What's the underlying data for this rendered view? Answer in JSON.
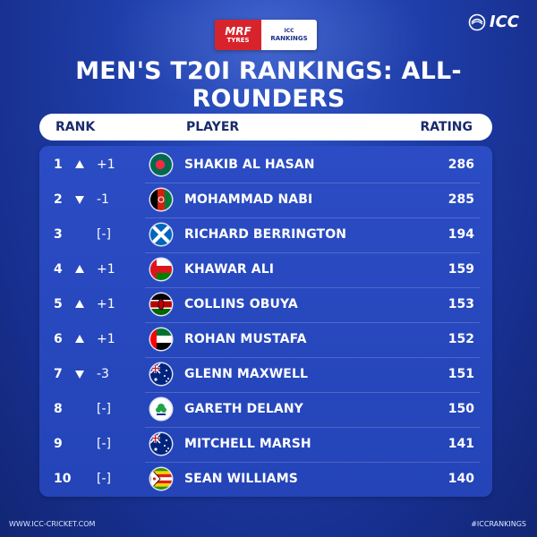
{
  "sponsor": {
    "mrf": "MRF",
    "tyres": "TYRES",
    "icc_small": "ICC",
    "rankings": "RANKINGS"
  },
  "brand": {
    "name": "ICC"
  },
  "title": "MEN'S T20I RANKINGS: ALL-ROUNDERS",
  "header": {
    "rank": "RANK",
    "player": "PLAYER",
    "rating": "RATING"
  },
  "rows": [
    {
      "rank": "1",
      "movement": "up",
      "change": "+1",
      "player": "SHAKIB AL HASAN",
      "rating": "286",
      "flag": "bangladesh-flag-icon"
    },
    {
      "rank": "2",
      "movement": "down",
      "change": "-1",
      "player": "MOHAMMAD NABI",
      "rating": "285",
      "flag": "afghanistan-flag-icon"
    },
    {
      "rank": "3",
      "movement": "none",
      "change": "[-]",
      "player": "RICHARD BERRINGTON",
      "rating": "194",
      "flag": "scotland-flag-icon"
    },
    {
      "rank": "4",
      "movement": "up",
      "change": "+1",
      "player": "KHAWAR ALI",
      "rating": "159",
      "flag": "oman-flag-icon"
    },
    {
      "rank": "5",
      "movement": "up",
      "change": "+1",
      "player": "COLLINS OBUYA",
      "rating": "153",
      "flag": "kenya-flag-icon"
    },
    {
      "rank": "6",
      "movement": "up",
      "change": "+1",
      "player": "ROHAN MUSTAFA",
      "rating": "152",
      "flag": "uae-flag-icon"
    },
    {
      "rank": "7",
      "movement": "down",
      "change": "-3",
      "player": "GLENN MAXWELL",
      "rating": "151",
      "flag": "australia-flag-icon"
    },
    {
      "rank": "8",
      "movement": "none",
      "change": "[-]",
      "player": "GARETH DELANY",
      "rating": "150",
      "flag": "ireland-cricket-icon"
    },
    {
      "rank": "9",
      "movement": "none",
      "change": "[-]",
      "player": "MITCHELL MARSH",
      "rating": "141",
      "flag": "australia-flag-icon"
    },
    {
      "rank": "10",
      "movement": "none",
      "change": "[-]",
      "player": "SEAN WILLIAMS",
      "rating": "140",
      "flag": "zimbabwe-flag-icon"
    }
  ],
  "footer": {
    "website": "WWW.ICC-CRICKET.COM",
    "hashtag": "#ICCRANKINGS"
  },
  "colors": {
    "background": "#1f3ea9",
    "table": "#2b4cc4",
    "header_text": "#1a2a6c",
    "accent_red": "#d7242c"
  }
}
